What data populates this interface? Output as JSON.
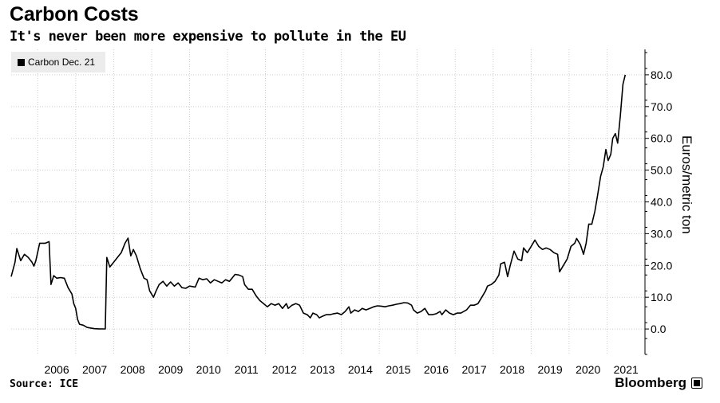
{
  "header": {
    "title": "Carbon Costs",
    "subtitle": "It's never been more expensive to pollute in the EU"
  },
  "footer": {
    "source": "Source: ICE",
    "brand": "Bloomberg"
  },
  "chart_data": {
    "type": "line",
    "title": "Carbon Costs",
    "subtitle": "It's never been more expensive to pollute in the EU",
    "xlabel": "",
    "ylabel": "Euros/metric ton",
    "xlim": [
      2005.3,
      2022.0
    ],
    "ylim": [
      -8,
      88
    ],
    "x_ticks": [
      "2006",
      "2007",
      "2008",
      "2009",
      "2010",
      "2011",
      "2012",
      "2013",
      "2014",
      "2015",
      "2016",
      "2017",
      "2018",
      "2019",
      "2020",
      "2021"
    ],
    "y_ticks": [
      "0.0",
      "10.0",
      "20.0",
      "30.0",
      "40.0",
      "50.0",
      "60.0",
      "70.0",
      "80.0"
    ],
    "y_axis_side": "right",
    "grid": true,
    "legend_position": "top-left",
    "colors": {
      "line": "#000000",
      "grid": "#cccccc",
      "legend_bg": "#ececec"
    },
    "series": [
      {
        "name": "Carbon Dec. 21",
        "points": [
          [
            2005.3,
            16.5
          ],
          [
            2005.4,
            21
          ],
          [
            2005.45,
            25.3
          ],
          [
            2005.55,
            21.5
          ],
          [
            2005.65,
            23.5
          ],
          [
            2005.75,
            22.5
          ],
          [
            2005.85,
            21
          ],
          [
            2005.9,
            19.8
          ],
          [
            2005.95,
            21.5
          ],
          [
            2006.05,
            27
          ],
          [
            2006.2,
            27
          ],
          [
            2006.3,
            27.5
          ],
          [
            2006.35,
            14
          ],
          [
            2006.42,
            16.8
          ],
          [
            2006.5,
            16
          ],
          [
            2006.6,
            16.2
          ],
          [
            2006.7,
            16
          ],
          [
            2006.8,
            13
          ],
          [
            2006.9,
            11
          ],
          [
            2006.95,
            8
          ],
          [
            2007.0,
            6.5
          ],
          [
            2007.05,
            3
          ],
          [
            2007.1,
            1.5
          ],
          [
            2007.2,
            1.2
          ],
          [
            2007.3,
            0.5
          ],
          [
            2007.4,
            0.3
          ],
          [
            2007.5,
            0.1
          ],
          [
            2007.6,
            0.05
          ],
          [
            2007.7,
            0.02
          ],
          [
            2007.78,
            0.02
          ],
          [
            2007.82,
            22.5
          ],
          [
            2007.9,
            19.5
          ],
          [
            2008.0,
            21
          ],
          [
            2008.1,
            22.5
          ],
          [
            2008.2,
            24
          ],
          [
            2008.3,
            27
          ],
          [
            2008.38,
            28.6
          ],
          [
            2008.45,
            23
          ],
          [
            2008.52,
            25
          ],
          [
            2008.6,
            23
          ],
          [
            2008.7,
            19
          ],
          [
            2008.8,
            16
          ],
          [
            2008.88,
            15.5
          ],
          [
            2008.95,
            12
          ],
          [
            2009.05,
            10
          ],
          [
            2009.12,
            12
          ],
          [
            2009.2,
            14
          ],
          [
            2009.3,
            15
          ],
          [
            2009.4,
            13.5
          ],
          [
            2009.5,
            14.8
          ],
          [
            2009.6,
            13.5
          ],
          [
            2009.7,
            14.5
          ],
          [
            2009.8,
            13
          ],
          [
            2009.9,
            12.8
          ],
          [
            2010.0,
            13.5
          ],
          [
            2010.15,
            13.2
          ],
          [
            2010.25,
            16
          ],
          [
            2010.35,
            15.5
          ],
          [
            2010.45,
            15.8
          ],
          [
            2010.55,
            14.5
          ],
          [
            2010.65,
            15.5
          ],
          [
            2010.75,
            15
          ],
          [
            2010.85,
            14.5
          ],
          [
            2010.95,
            15.5
          ],
          [
            2011.05,
            15
          ],
          [
            2011.12,
            16
          ],
          [
            2011.2,
            17.2
          ],
          [
            2011.3,
            17
          ],
          [
            2011.4,
            16.5
          ],
          [
            2011.45,
            14
          ],
          [
            2011.55,
            12.5
          ],
          [
            2011.65,
            12.5
          ],
          [
            2011.75,
            10.5
          ],
          [
            2011.85,
            9
          ],
          [
            2011.95,
            8
          ],
          [
            2012.05,
            7
          ],
          [
            2012.15,
            8
          ],
          [
            2012.25,
            7.5
          ],
          [
            2012.35,
            8
          ],
          [
            2012.45,
            6.5
          ],
          [
            2012.55,
            8
          ],
          [
            2012.6,
            6.5
          ],
          [
            2012.7,
            7.5
          ],
          [
            2012.8,
            8
          ],
          [
            2012.9,
            7.5
          ],
          [
            2013.0,
            5
          ],
          [
            2013.1,
            4.5
          ],
          [
            2013.18,
            3.5
          ],
          [
            2013.25,
            5
          ],
          [
            2013.35,
            4.5
          ],
          [
            2013.42,
            3.5
          ],
          [
            2013.5,
            4
          ],
          [
            2013.6,
            4.5
          ],
          [
            2013.7,
            4.5
          ],
          [
            2013.8,
            4.8
          ],
          [
            2013.9,
            5
          ],
          [
            2014.0,
            4.5
          ],
          [
            2014.1,
            5.5
          ],
          [
            2014.2,
            7
          ],
          [
            2014.25,
            5
          ],
          [
            2014.35,
            6
          ],
          [
            2014.45,
            5.5
          ],
          [
            2014.55,
            6.5
          ],
          [
            2014.65,
            6
          ],
          [
            2014.75,
            6.5
          ],
          [
            2014.85,
            7
          ],
          [
            2014.95,
            7.3
          ],
          [
            2015.05,
            7.2
          ],
          [
            2015.15,
            7
          ],
          [
            2015.25,
            7.3
          ],
          [
            2015.35,
            7.5
          ],
          [
            2015.45,
            7.8
          ],
          [
            2015.55,
            8
          ],
          [
            2015.65,
            8.3
          ],
          [
            2015.75,
            8.2
          ],
          [
            2015.85,
            7.5
          ],
          [
            2015.9,
            6
          ],
          [
            2016.0,
            5
          ],
          [
            2016.1,
            5.5
          ],
          [
            2016.2,
            6.5
          ],
          [
            2016.3,
            4.5
          ],
          [
            2016.4,
            4.5
          ],
          [
            2016.5,
            4.8
          ],
          [
            2016.6,
            5.5
          ],
          [
            2016.65,
            4.5
          ],
          [
            2016.75,
            6
          ],
          [
            2016.85,
            5
          ],
          [
            2016.95,
            4.5
          ],
          [
            2017.05,
            5
          ],
          [
            2017.15,
            5
          ],
          [
            2017.3,
            6
          ],
          [
            2017.4,
            7.5
          ],
          [
            2017.5,
            7.5
          ],
          [
            2017.6,
            8
          ],
          [
            2017.7,
            10
          ],
          [
            2017.8,
            12
          ],
          [
            2017.85,
            13.5
          ],
          [
            2017.95,
            14
          ],
          [
            2018.05,
            15
          ],
          [
            2018.15,
            17
          ],
          [
            2018.2,
            20.5
          ],
          [
            2018.3,
            21
          ],
          [
            2018.38,
            16.5
          ],
          [
            2018.45,
            20
          ],
          [
            2018.55,
            24.5
          ],
          [
            2018.65,
            22
          ],
          [
            2018.75,
            21.5
          ],
          [
            2018.8,
            25.5
          ],
          [
            2018.9,
            24
          ],
          [
            2019.0,
            26
          ],
          [
            2019.1,
            28
          ],
          [
            2019.2,
            26
          ],
          [
            2019.3,
            25
          ],
          [
            2019.4,
            25.5
          ],
          [
            2019.5,
            25
          ],
          [
            2019.6,
            24
          ],
          [
            2019.7,
            23.5
          ],
          [
            2019.75,
            18
          ],
          [
            2019.85,
            20
          ],
          [
            2019.95,
            22
          ],
          [
            2020.05,
            26
          ],
          [
            2020.15,
            27
          ],
          [
            2020.2,
            28.5
          ],
          [
            2020.3,
            26.5
          ],
          [
            2020.38,
            23.5
          ],
          [
            2020.45,
            27
          ],
          [
            2020.52,
            33
          ],
          [
            2020.6,
            33
          ],
          [
            2020.68,
            37
          ],
          [
            2020.75,
            42
          ],
          [
            2020.83,
            48
          ],
          [
            2020.9,
            51
          ],
          [
            2020.97,
            56.5
          ],
          [
            2021.03,
            53
          ],
          [
            2021.1,
            55
          ],
          [
            2021.15,
            60
          ],
          [
            2021.22,
            61.5
          ],
          [
            2021.28,
            58.5
          ],
          [
            2021.35,
            67
          ],
          [
            2021.42,
            77
          ],
          [
            2021.48,
            80
          ]
        ]
      }
    ]
  }
}
